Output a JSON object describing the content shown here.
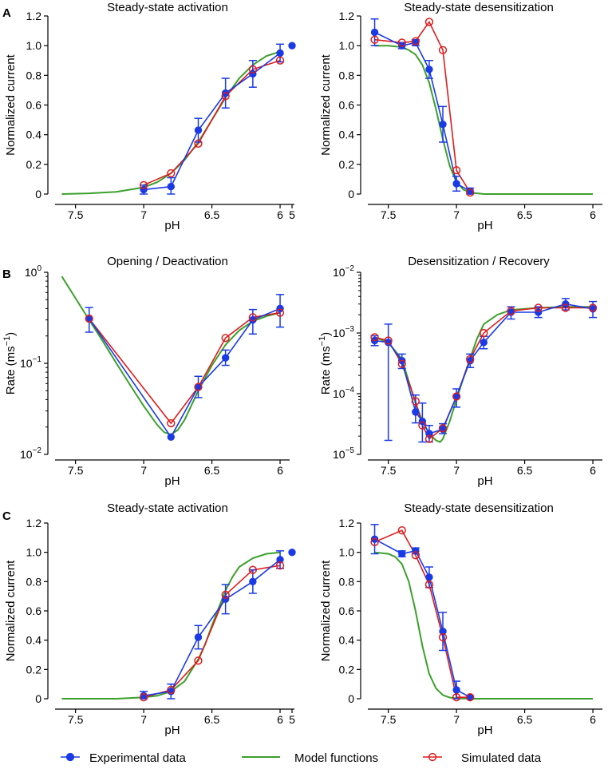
{
  "legend": [
    {
      "name": "Experimental data",
      "color": "#1a3ae6",
      "marker": "filled-circle"
    },
    {
      "name": "Model functions",
      "color": "#3ca02c",
      "marker": "line"
    },
    {
      "name": "Simulated data",
      "color": "#dd1c1c",
      "marker": "open-circle"
    }
  ],
  "chart_data": [
    {
      "panel": "A",
      "position": "left",
      "type": "line",
      "title": "Steady-state activation",
      "xlabel": "pH",
      "ylabel": "Normalized current",
      "yscale": "linear",
      "xlim": [
        7.65,
        5.93
      ],
      "ylim": [
        0,
        1.2
      ],
      "xticks": [
        "7.5",
        "7",
        "6.5",
        "6",
        "5"
      ],
      "yticks": [
        "0",
        "0.2",
        "0.4",
        "0.6",
        "0.8",
        "1.0",
        "1.2"
      ],
      "series": [
        {
          "name": "Experimental data",
          "x": [
            7.0,
            6.8,
            6.6,
            6.4,
            6.2,
            6.0
          ],
          "y": [
            0.03,
            0.05,
            0.43,
            0.68,
            0.81,
            0.95
          ],
          "err": [
            0.03,
            0.06,
            0.08,
            0.1,
            0.09,
            0.06
          ]
        },
        {
          "name": "Model functions",
          "x": [
            7.6,
            7.4,
            7.2,
            7.0,
            6.9,
            6.8,
            6.7,
            6.6,
            6.5,
            6.4,
            6.3,
            6.2,
            6.1,
            6.0
          ],
          "y": [
            0.0,
            0.005,
            0.015,
            0.045,
            0.08,
            0.14,
            0.23,
            0.35,
            0.5,
            0.65,
            0.78,
            0.87,
            0.93,
            0.96
          ]
        },
        {
          "name": "Simulated data",
          "x": [
            7.0,
            6.8,
            6.6,
            6.4,
            6.2,
            6.0
          ],
          "y": [
            0.06,
            0.14,
            0.34,
            0.66,
            0.84,
            0.9
          ]
        }
      ],
      "extra_point": {
        "label": "5",
        "y": 1.0
      }
    },
    {
      "panel": "A",
      "position": "right",
      "type": "line",
      "title": "Steady-state desensitization",
      "xlabel": "pH",
      "ylabel": "Normalized current",
      "yscale": "linear",
      "xlim": [
        7.65,
        5.93
      ],
      "ylim": [
        0,
        1.2
      ],
      "xticks": [
        "7.5",
        "7",
        "6.5",
        "6"
      ],
      "yticks": [
        "0",
        "0.2",
        "0.4",
        "0.6",
        "0.8",
        "1.0",
        "1.2"
      ],
      "series": [
        {
          "name": "Experimental data",
          "x": [
            7.6,
            7.4,
            7.3,
            7.2,
            7.1,
            7.0,
            6.9
          ],
          "y": [
            1.09,
            1.0,
            1.02,
            0.84,
            0.47,
            0.07,
            0.02
          ],
          "err": [
            0.09,
            0.02,
            0.02,
            0.06,
            0.12,
            0.05,
            0.02
          ]
        },
        {
          "name": "Model functions",
          "x": [
            7.6,
            7.5,
            7.4,
            7.35,
            7.3,
            7.25,
            7.2,
            7.15,
            7.1,
            7.05,
            7.0,
            6.95,
            6.9,
            6.8,
            6.5,
            6.0
          ],
          "y": [
            1.0,
            1.0,
            0.99,
            0.97,
            0.94,
            0.87,
            0.75,
            0.57,
            0.37,
            0.19,
            0.08,
            0.03,
            0.01,
            0.0,
            0.0,
            0.0
          ]
        },
        {
          "name": "Simulated data",
          "x": [
            7.6,
            7.4,
            7.3,
            7.2,
            7.1,
            7.0,
            6.9
          ],
          "y": [
            1.04,
            1.02,
            1.03,
            1.16,
            0.97,
            0.16,
            0.01
          ]
        }
      ]
    },
    {
      "panel": "B",
      "position": "left",
      "type": "line",
      "title": "Opening / Deactivation",
      "xlabel": "pH",
      "ylabel": "Rate (ms⁻¹)",
      "yscale": "log",
      "xlim": [
        7.65,
        5.93
      ],
      "ylim": [
        0.01,
        1
      ],
      "xticks": [
        "7.5",
        "7",
        "6.5",
        "6"
      ],
      "yticks": [
        "10^-2",
        "10^-1",
        "10^0"
      ],
      "series": [
        {
          "name": "Experimental data",
          "x": [
            7.4,
            6.8,
            6.6,
            6.4,
            6.2,
            6.0
          ],
          "y": [
            0.31,
            0.0155,
            0.055,
            0.115,
            0.3,
            0.4
          ],
          "err_lo": [
            0.22,
            0.0155,
            0.042,
            0.095,
            0.21,
            0.25
          ],
          "err_hi": [
            0.41,
            0.0155,
            0.072,
            0.14,
            0.39,
            0.57
          ]
        },
        {
          "name": "Model functions",
          "x": [
            7.6,
            7.5,
            7.4,
            7.3,
            7.2,
            7.1,
            7.0,
            6.9,
            6.85,
            6.8,
            6.75,
            6.7,
            6.6,
            6.5,
            6.4,
            6.3,
            6.2,
            6.1,
            6.0
          ],
          "y": [
            0.9,
            0.52,
            0.3,
            0.175,
            0.1,
            0.058,
            0.034,
            0.021,
            0.0175,
            0.0165,
            0.0185,
            0.024,
            0.05,
            0.095,
            0.16,
            0.23,
            0.29,
            0.33,
            0.36
          ]
        },
        {
          "name": "Simulated data",
          "x": [
            7.4,
            6.8,
            6.6,
            6.4,
            6.2,
            6.0
          ],
          "y": [
            0.31,
            0.022,
            0.055,
            0.19,
            0.32,
            0.36
          ]
        }
      ]
    },
    {
      "panel": "B",
      "position": "right",
      "type": "line",
      "title": "Desensitization / Recovery",
      "xlabel": "pH",
      "ylabel": "Rate (ms⁻¹)",
      "yscale": "log",
      "xlim": [
        7.65,
        5.93
      ],
      "ylim": [
        1e-05,
        0.01
      ],
      "xticks": [
        "7.5",
        "7",
        "6.5",
        "6"
      ],
      "yticks": [
        "10^-5",
        "10^-4",
        "10^-3",
        "10^-2"
      ],
      "series": [
        {
          "name": "Experimental data",
          "x": [
            7.6,
            7.5,
            7.4,
            7.3,
            7.25,
            7.2,
            7.1,
            7.0,
            6.9,
            6.8,
            6.6,
            6.4,
            6.2,
            6.0
          ],
          "y": [
            0.00075,
            0.0007,
            0.00035,
            5e-05,
            3.5e-05,
            2.2e-05,
            2.6e-05,
            9e-05,
            0.00035,
            0.0007,
            0.0022,
            0.0022,
            0.003,
            0.0025
          ],
          "err_lo": [
            0.00062,
            1.7e-05,
            0.00026,
            3.3e-05,
            1.6e-05,
            1.6e-05,
            2.2e-05,
            6e-05,
            0.00027,
            0.00055,
            0.0017,
            0.0018,
            0.0024,
            0.0018
          ],
          "err_hi": [
            0.0009,
            0.0014,
            0.00045,
            9.5e-05,
            7e-05,
            3e-05,
            3.2e-05,
            0.00012,
            0.00045,
            0.00088,
            0.0027,
            0.0027,
            0.0037,
            0.0033
          ]
        },
        {
          "name": "Model functions",
          "x": [
            7.6,
            7.5,
            7.4,
            7.35,
            7.3,
            7.25,
            7.2,
            7.15,
            7.12,
            7.1,
            7.05,
            7.0,
            6.95,
            6.9,
            6.85,
            6.8,
            6.7,
            6.6,
            6.4,
            6.2,
            6.0
          ],
          "y": [
            0.00085,
            0.0007,
            0.00037,
            0.00016,
            7e-05,
            3.5e-05,
            2.2e-05,
            1.7e-05,
            1.6e-05,
            1.8e-05,
            3.5e-05,
            8e-05,
            0.00018,
            0.00038,
            0.0008,
            0.0014,
            0.002,
            0.0024,
            0.0026,
            0.0027,
            0.0027
          ]
        },
        {
          "name": "Simulated data",
          "x": [
            7.6,
            7.5,
            7.4,
            7.3,
            7.25,
            7.2,
            7.1,
            7.0,
            6.9,
            6.8,
            6.6,
            6.4,
            6.2,
            6.0
          ],
          "y": [
            0.00085,
            0.00075,
            0.00031,
            7.5e-05,
            3e-05,
            1.8e-05,
            2.7e-05,
            9e-05,
            0.00037,
            0.001,
            0.0023,
            0.0026,
            0.0026,
            0.0026
          ]
        }
      ]
    },
    {
      "panel": "C",
      "position": "left",
      "type": "line",
      "title": "Steady-state activation",
      "xlabel": "pH",
      "ylabel": "Normalized current",
      "yscale": "linear",
      "xlim": [
        7.65,
        5.93
      ],
      "ylim": [
        0,
        1.2
      ],
      "xticks": [
        "7.5",
        "7",
        "6.5",
        "6",
        "5"
      ],
      "yticks": [
        "0",
        "0.2",
        "0.4",
        "0.6",
        "0.8",
        "1.0",
        "1.2"
      ],
      "series": [
        {
          "name": "Experimental data",
          "x": [
            7.0,
            6.8,
            6.6,
            6.4,
            6.2,
            6.0
          ],
          "y": [
            0.02,
            0.05,
            0.42,
            0.68,
            0.8,
            0.95
          ],
          "err": [
            0.03,
            0.05,
            0.08,
            0.1,
            0.08,
            0.06
          ]
        },
        {
          "name": "Model functions",
          "x": [
            7.6,
            7.2,
            7.0,
            6.9,
            6.8,
            6.7,
            6.6,
            6.55,
            6.5,
            6.45,
            6.4,
            6.35,
            6.3,
            6.2,
            6.1,
            6.0
          ],
          "y": [
            0.0,
            0.0,
            0.01,
            0.02,
            0.05,
            0.12,
            0.27,
            0.37,
            0.5,
            0.62,
            0.74,
            0.83,
            0.9,
            0.96,
            0.99,
            1.0
          ]
        },
        {
          "name": "Simulated data",
          "x": [
            7.0,
            6.8,
            6.6,
            6.4,
            6.2,
            6.0
          ],
          "y": [
            0.01,
            0.06,
            0.26,
            0.71,
            0.88,
            0.91
          ]
        }
      ],
      "extra_point": {
        "label": "5",
        "y": 1.0
      }
    },
    {
      "panel": "C",
      "position": "right",
      "type": "line",
      "title": "Steady-state desensitization",
      "xlabel": "pH",
      "ylabel": "Normalized current",
      "yscale": "linear",
      "xlim": [
        7.65,
        5.93
      ],
      "ylim": [
        0,
        1.2
      ],
      "xticks": [
        "7.5",
        "7",
        "6.5",
        "6"
      ],
      "yticks": [
        "0",
        "0.2",
        "0.4",
        "0.6",
        "0.8",
        "1.0",
        "1.2"
      ],
      "series": [
        {
          "name": "Experimental data",
          "x": [
            7.6,
            7.4,
            7.3,
            7.2,
            7.1,
            7.0,
            6.9
          ],
          "y": [
            1.09,
            0.99,
            1.01,
            0.83,
            0.46,
            0.06,
            0.01
          ],
          "err": [
            0.1,
            0.02,
            0.02,
            0.07,
            0.13,
            0.06,
            0.01
          ]
        },
        {
          "name": "Model functions",
          "x": [
            7.6,
            7.5,
            7.45,
            7.4,
            7.35,
            7.3,
            7.25,
            7.2,
            7.15,
            7.1,
            7.05,
            7.0,
            6.9,
            6.5,
            6.0
          ],
          "y": [
            1.0,
            0.99,
            0.97,
            0.92,
            0.8,
            0.6,
            0.36,
            0.17,
            0.07,
            0.025,
            0.008,
            0.003,
            0.0,
            0.0,
            0.0
          ]
        },
        {
          "name": "Simulated data",
          "x": [
            7.6,
            7.4,
            7.3,
            7.2,
            7.1,
            7.0,
            6.9
          ],
          "y": [
            1.07,
            1.15,
            0.98,
            0.78,
            0.42,
            0.01,
            0.01
          ]
        }
      ]
    }
  ]
}
